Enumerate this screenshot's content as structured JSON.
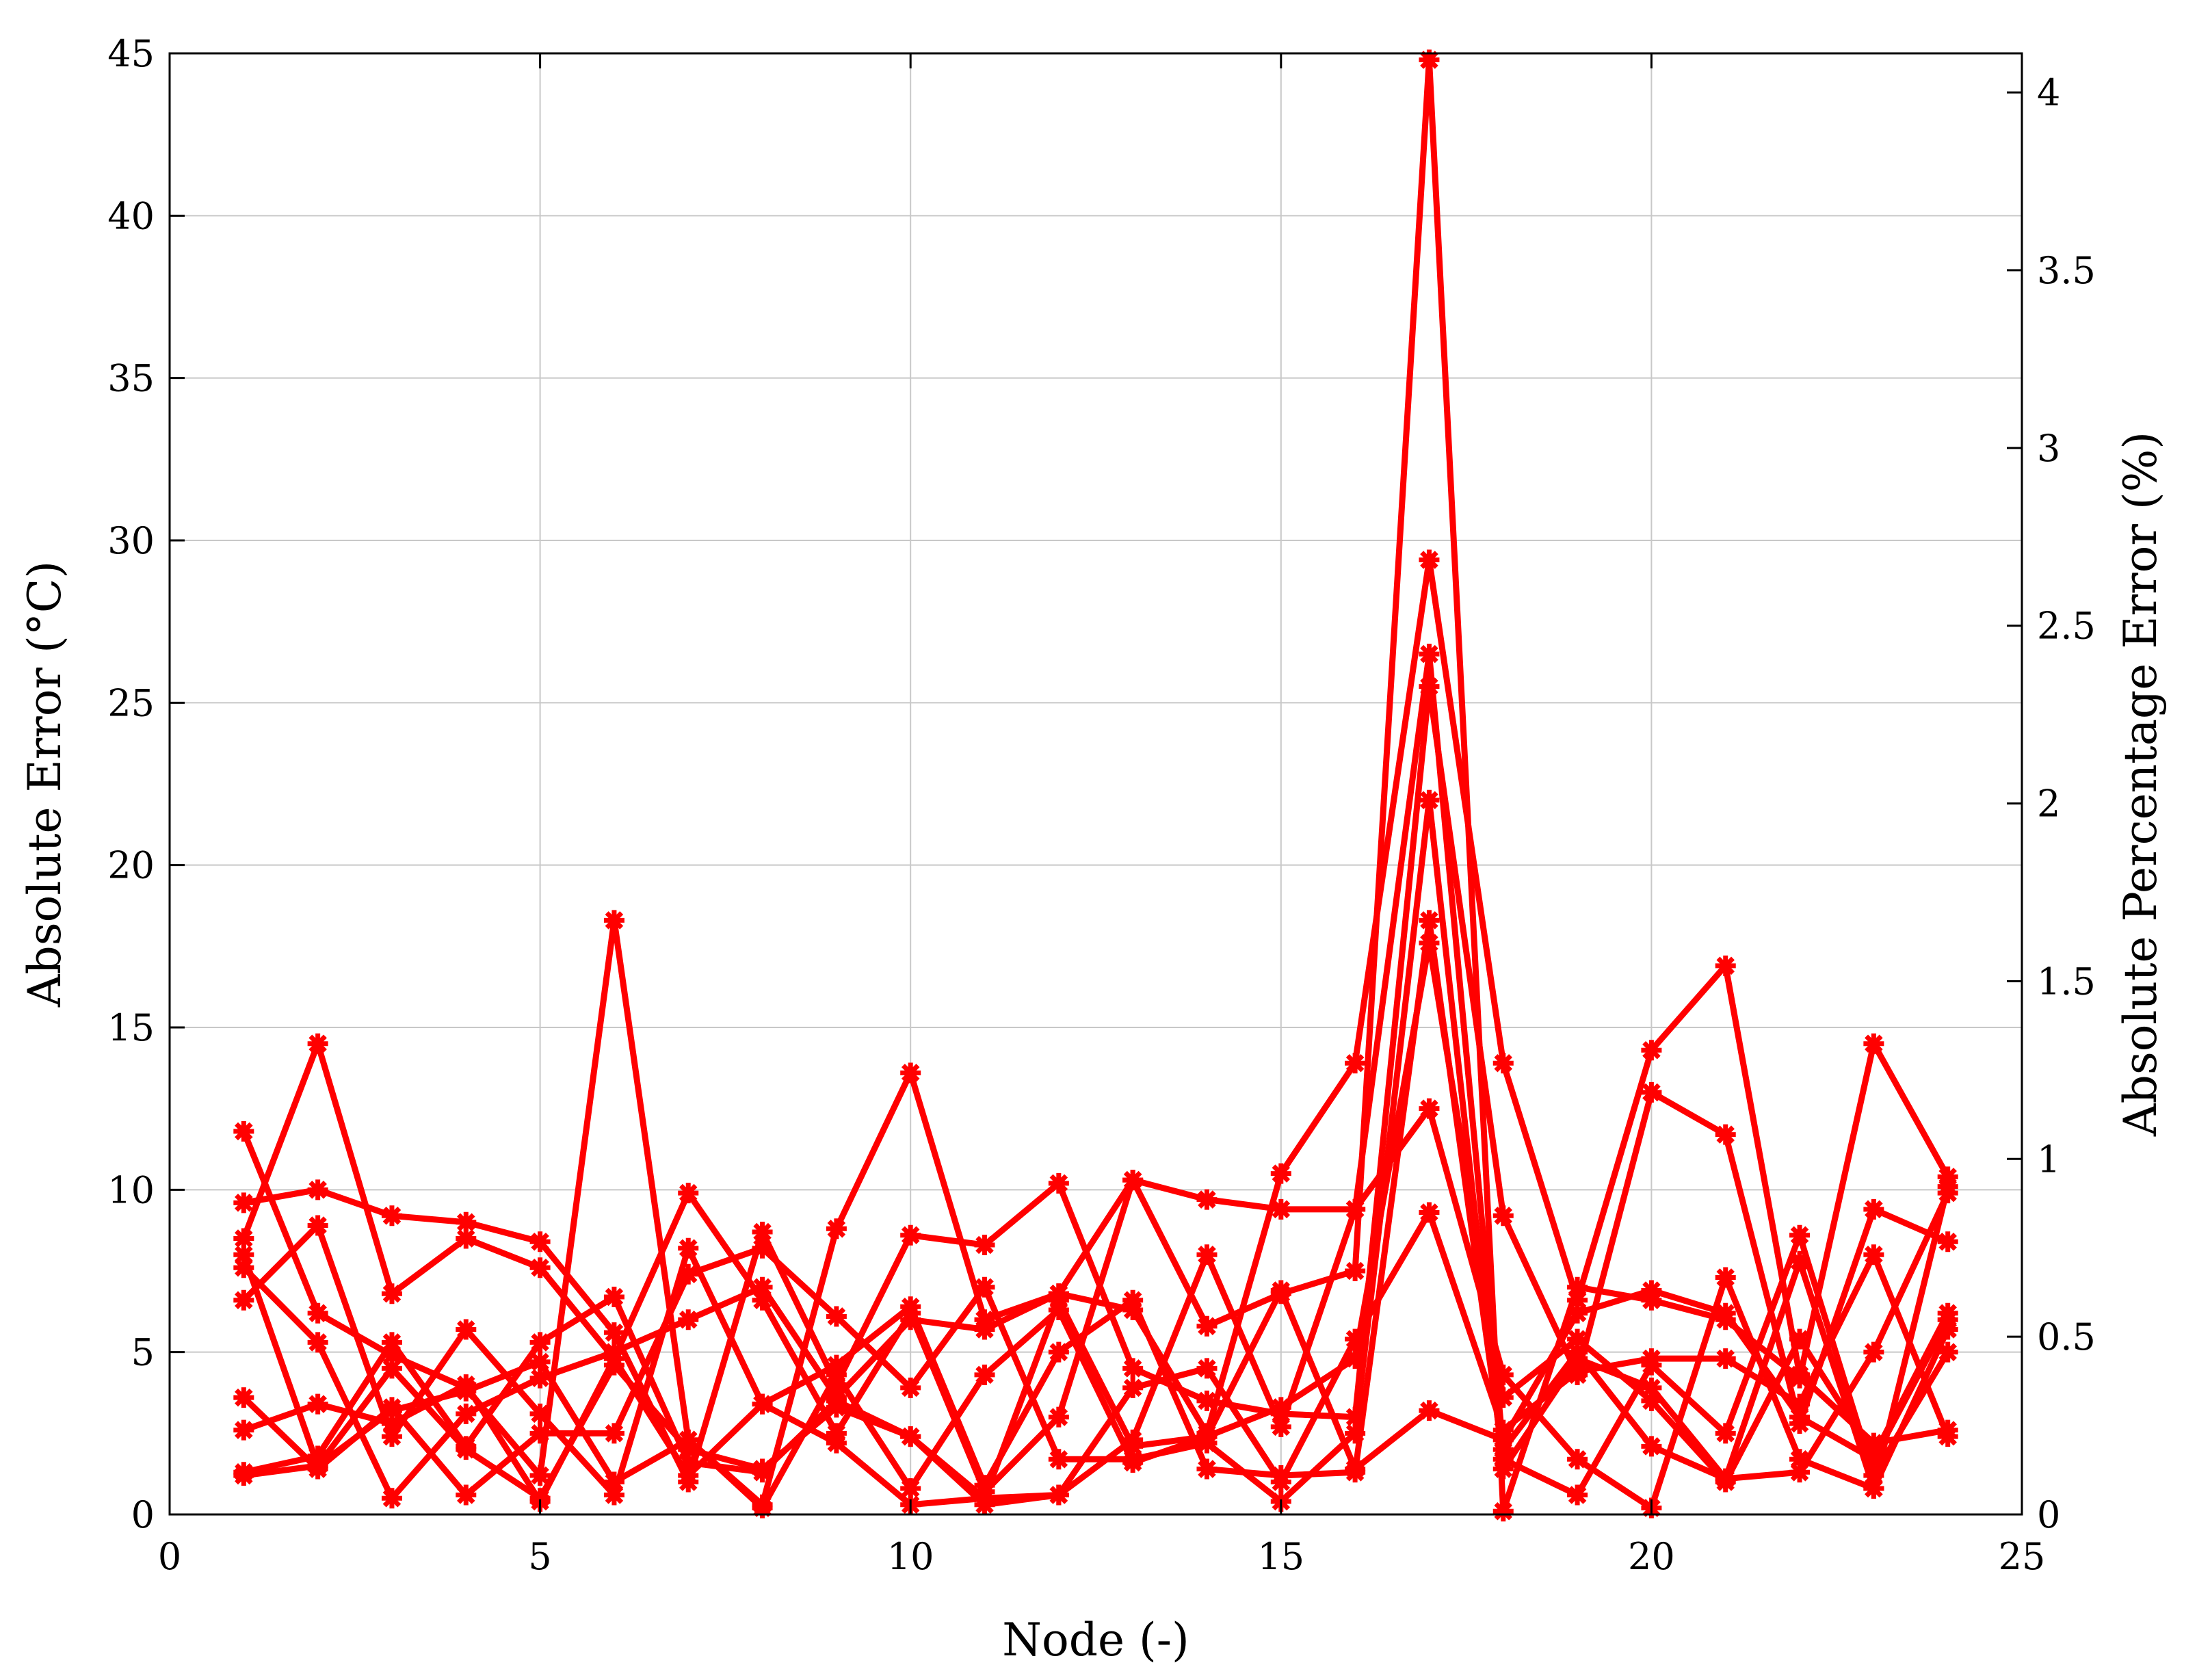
{
  "chart_data": {
    "type": "line",
    "xlabel": "Node (-)",
    "ylabel": "Absolute Error (°C)",
    "y2label": "Absolute Percentage Error (%)",
    "xlim": [
      0,
      25
    ],
    "ylim": [
      0,
      45
    ],
    "y2lim": [
      0,
      4.11
    ],
    "xticks": [
      "0",
      "5",
      "10",
      "15",
      "20",
      "25"
    ],
    "yticks": [
      "0",
      "5",
      "10",
      "15",
      "20",
      "25",
      "30",
      "35",
      "40",
      "45"
    ],
    "y2ticks": [
      "0",
      "0.5",
      "1",
      "1.5",
      "2",
      "2.5",
      "3",
      "3.5",
      "4"
    ],
    "grid": true,
    "color": "#ff0000",
    "marker": "asterisk",
    "x": [
      1,
      2,
      3,
      4,
      5,
      6,
      7,
      8,
      9,
      10,
      11,
      12,
      13,
      14,
      15,
      16,
      17,
      18,
      19,
      20,
      21,
      22,
      23,
      24
    ],
    "series": [
      {
        "values": [
          8.5,
          14.5,
          6.8,
          8.5,
          7.6,
          4.8,
          9.9,
          6.6,
          2.5,
          6.2,
          0.7,
          3.0,
          10.3,
          5.8,
          6.8,
          7.5,
          44.8,
          0.1,
          7.0,
          6.6,
          6.0,
          4.2,
          14.5,
          10.4
        ]
      },
      {
        "values": [
          11.8,
          6.2,
          4.9,
          3.9,
          1.2,
          18.3,
          2.3,
          0.3,
          8.8,
          13.6,
          6.0,
          6.8,
          6.3,
          2.5,
          10.5,
          13.9,
          29.4,
          13.9,
          6.6,
          14.3,
          16.9,
          4.3,
          2.2,
          2.6
        ]
      },
      {
        "values": [
          9.6,
          10.0,
          9.2,
          9.0,
          8.4,
          5.6,
          1.0,
          8.7,
          4.0,
          8.6,
          8.3,
          10.2,
          4.5,
          3.5,
          3.1,
          3.0,
          25.5,
          9.2,
          4.3,
          13.0,
          11.7,
          2.8,
          9.4,
          8.4
        ]
      },
      {
        "values": [
          7.6,
          5.3,
          0.5,
          3.1,
          4.2,
          5.0,
          6.0,
          7.0,
          3.6,
          6.0,
          5.7,
          6.8,
          10.3,
          9.7,
          9.4,
          9.4,
          12.5,
          4.3,
          1.7,
          0.2,
          7.3,
          1.7,
          0.8,
          10.1
        ]
      },
      {
        "values": [
          6.6,
          8.9,
          2.4,
          5.7,
          3.1,
          0.6,
          8.2,
          3.4,
          2.2,
          0.3,
          0.5,
          0.6,
          2.3,
          8.0,
          2.7,
          9.4,
          26.5,
          2.0,
          5.0,
          2.1,
          1.1,
          1.3,
          5.0,
          9.9
        ]
      },
      {
        "values": [
          3.6,
          1.4,
          3.3,
          0.6,
          2.5,
          2.5,
          7.4,
          8.2,
          6.1,
          3.9,
          7.0,
          1.7,
          1.7,
          2.2,
          0.4,
          2.5,
          22.0,
          1.4,
          4.8,
          3.9,
          1.1,
          7.8,
          0.8,
          5.7
        ]
      },
      {
        "values": [
          2.6,
          3.4,
          2.8,
          4.0,
          0.4,
          4.8,
          1.2,
          3.4,
          4.6,
          6.4,
          0.9,
          5.0,
          6.6,
          1.4,
          1.2,
          1.3,
          18.3,
          1.7,
          0.6,
          4.6,
          2.5,
          8.6,
          1.2,
          5.0
        ]
      },
      {
        "values": [
          1.3,
          1.8,
          5.3,
          2.1,
          5.3,
          6.7,
          1.6,
          1.3,
          3.5,
          2.4,
          0.3,
          0.6,
          3.9,
          4.5,
          1.0,
          5.4,
          9.3,
          2.6,
          4.4,
          4.8,
          4.8,
          3.4,
          8.0,
          2.4
        ]
      },
      {
        "values": [
          1.2,
          1.5,
          3.2,
          3.8,
          4.7,
          1.0,
          2.3,
          0.2,
          4.3,
          0.8,
          4.3,
          6.3,
          1.6,
          2.4,
          3.3,
          4.8,
          17.6,
          3.6,
          5.4,
          3.5,
          1.0,
          5.4,
          1.8,
          6.2
        ]
      },
      {
        "values": [
          8.0,
          1.5,
          4.5,
          2.0,
          0.5,
          4.6,
          2.0,
          1.4,
          3.3,
          2.4,
          0.5,
          6.6,
          2.1,
          2.4,
          6.9,
          1.4,
          3.2,
          2.3,
          6.2,
          6.9,
          6.2,
          3.0,
          1.7,
          6.0
        ]
      }
    ]
  }
}
